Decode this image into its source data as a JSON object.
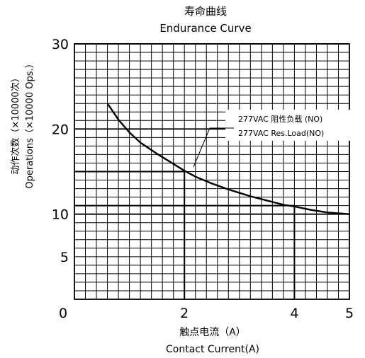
{
  "chart_data": {
    "type": "line",
    "title": "寿命曲线",
    "subtitle": "Endurance Curve",
    "xlabel_cn": "触点电流（A）",
    "xlabel_en": "Contact Current(A)",
    "ylabel_cn": "动作次数（×10000次）",
    "ylabel_en": "Operations（×10000 Ops.）",
    "xlim": [
      0,
      5
    ],
    "x_ticks": [
      {
        "value": 0,
        "label": "0"
      },
      {
        "value": 2,
        "label": "2"
      },
      {
        "value": 4,
        "label": "4"
      },
      {
        "value": 5,
        "label": "5"
      }
    ],
    "ylim": [
      0,
      30
    ],
    "y_ticks": [
      {
        "value": 5,
        "label": "5"
      },
      {
        "value": 10,
        "label": "10"
      },
      {
        "value": 20,
        "label": "20"
      },
      {
        "value": 30,
        "label": "30"
      }
    ],
    "grid": true,
    "series": [
      {
        "name": "",
        "x": [
          0.6,
          0.8,
          1.0,
          1.2,
          1.5,
          1.8,
          2.0,
          2.2,
          2.5,
          2.8,
          3.0,
          3.2,
          3.5,
          3.8,
          4.0,
          4.3,
          4.6,
          4.8,
          5.0
        ],
        "y": [
          23.0,
          21.1,
          19.6,
          18.4,
          17.1,
          15.9,
          15.1,
          14.4,
          13.6,
          12.9,
          12.5,
          12.1,
          11.6,
          11.1,
          10.9,
          10.5,
          10.2,
          10.1,
          10.0
        ]
      }
    ],
    "reference_points": [
      {
        "x": 2.0,
        "y": 15
      },
      {
        "x": 4.0,
        "y": 11
      }
    ],
    "annotation": {
      "line1": "277VAC 阻性负载 (NO)",
      "line2": "277VAC Res.Load(NO)",
      "points_to": {
        "x": 2.1,
        "y": 14.6
      }
    },
    "colors": {
      "line": "#000000",
      "grid": "#000000",
      "background": "#ffffff"
    }
  }
}
